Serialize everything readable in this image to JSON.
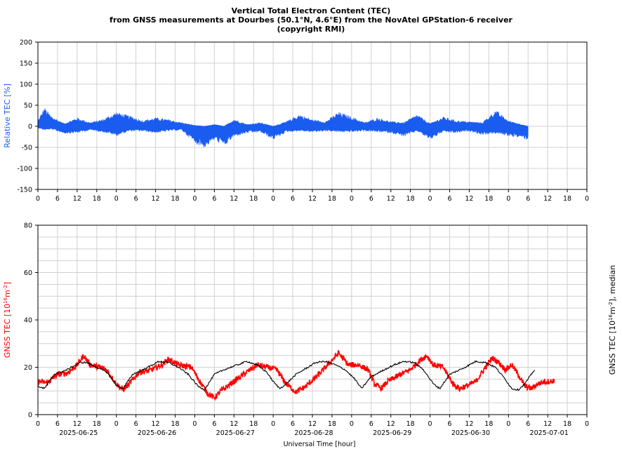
{
  "title": {
    "line1": "Vertical Total Electron Content (TEC)",
    "line2": "from GNSS measurements at Dourbes (50.1°N, 4.6°E) from the NovAtel GPStation-6 receiver",
    "line3": "(copyright RMI)"
  },
  "colors": {
    "relative": "#1a5cf0",
    "gnss": "#ff0000",
    "median": "#000000",
    "grid": "#d0d0d0"
  },
  "chart_data": [
    {
      "type": "area",
      "ylabel": "Relative TEC [%]",
      "ylim": [
        -150,
        200
      ],
      "yticks": [
        200,
        150,
        100,
        50,
        0,
        -50,
        -100,
        -150
      ],
      "xlim_hours": [
        0,
        168
      ],
      "data_end_hour": 150,
      "xtick_labels": [
        "0",
        "6",
        "12",
        "18",
        "0",
        "6",
        "12",
        "18",
        "0",
        "6",
        "12",
        "18",
        "0",
        "6",
        "12",
        "18",
        "0",
        "6",
        "12",
        "18",
        "0",
        "6",
        "12",
        "18",
        "0",
        "6",
        "12",
        "18",
        "0"
      ],
      "grid": true,
      "envelope_points": [
        {
          "hour": 0,
          "upper": 12,
          "lower": -3
        },
        {
          "hour": 2,
          "upper": 40,
          "lower": -8
        },
        {
          "hour": 4,
          "upper": 22,
          "lower": -6
        },
        {
          "hour": 8,
          "upper": 6,
          "lower": -15
        },
        {
          "hour": 12,
          "upper": 18,
          "lower": -14
        },
        {
          "hour": 16,
          "upper": 8,
          "lower": -8
        },
        {
          "hour": 20,
          "upper": 15,
          "lower": -12
        },
        {
          "hour": 24,
          "upper": 30,
          "lower": -20
        },
        {
          "hour": 28,
          "upper": 22,
          "lower": -10
        },
        {
          "hour": 32,
          "upper": 12,
          "lower": -10
        },
        {
          "hour": 36,
          "upper": 18,
          "lower": -14
        },
        {
          "hour": 40,
          "upper": 14,
          "lower": -10
        },
        {
          "hour": 44,
          "upper": 8,
          "lower": -8
        },
        {
          "hour": 48,
          "upper": 2,
          "lower": -35
        },
        {
          "hour": 51,
          "upper": 0,
          "lower": -45
        },
        {
          "hour": 54,
          "upper": 4,
          "lower": -28
        },
        {
          "hour": 57,
          "upper": 0,
          "lower": -42
        },
        {
          "hour": 60,
          "upper": 15,
          "lower": -22
        },
        {
          "hour": 64,
          "upper": 4,
          "lower": -14
        },
        {
          "hour": 68,
          "upper": 8,
          "lower": -12
        },
        {
          "hour": 72,
          "upper": 0,
          "lower": -28
        },
        {
          "hour": 76,
          "upper": 10,
          "lower": -12
        },
        {
          "hour": 80,
          "upper": 25,
          "lower": -10
        },
        {
          "hour": 84,
          "upper": 14,
          "lower": -12
        },
        {
          "hour": 88,
          "upper": 10,
          "lower": -10
        },
        {
          "hour": 92,
          "upper": 30,
          "lower": -12
        },
        {
          "hour": 96,
          "upper": 20,
          "lower": -12
        },
        {
          "hour": 100,
          "upper": 8,
          "lower": -10
        },
        {
          "hour": 104,
          "upper": 18,
          "lower": -12
        },
        {
          "hour": 108,
          "upper": 10,
          "lower": -14
        },
        {
          "hour": 112,
          "upper": 8,
          "lower": -22
        },
        {
          "hour": 116,
          "upper": 25,
          "lower": -10
        },
        {
          "hour": 120,
          "upper": 6,
          "lower": -28
        },
        {
          "hour": 124,
          "upper": 20,
          "lower": -12
        },
        {
          "hour": 128,
          "upper": 12,
          "lower": -14
        },
        {
          "hour": 132,
          "upper": 10,
          "lower": -10
        },
        {
          "hour": 136,
          "upper": 8,
          "lower": -18
        },
        {
          "hour": 140,
          "upper": 34,
          "lower": -15
        },
        {
          "hour": 144,
          "upper": 12,
          "lower": -20
        },
        {
          "hour": 148,
          "upper": 4,
          "lower": -25
        },
        {
          "hour": 150,
          "upper": 0,
          "lower": -28
        }
      ]
    },
    {
      "type": "line",
      "ylabel": "GNSS TEC [10^16 m^-2]",
      "ylabel_main": "GNSS TEC [10",
      "ylabel_exp1": "16",
      "ylabel_mid": "m",
      "ylabel_exp2": "-2",
      "ylabel_end": "]",
      "ylabel_right": "GNSS TEC [10^16 m^-2], median",
      "ylabel_right_main": "GNSS TEC [10",
      "ylabel_right_end": "], median",
      "xlabel": "Universal Time [hour]",
      "ylim": [
        0,
        80
      ],
      "yticks": [
        80,
        60,
        40,
        20,
        0
      ],
      "xlim_hours": [
        0,
        168
      ],
      "xtick_labels": [
        "0",
        "6",
        "12",
        "18",
        "0",
        "6",
        "12",
        "18",
        "0",
        "6",
        "12",
        "18",
        "0",
        "6",
        "12",
        "18",
        "0",
        "6",
        "12",
        "18",
        "0",
        "6",
        "12",
        "18",
        "0",
        "6",
        "12",
        "18",
        "0"
      ],
      "date_labels": [
        "2025-06-25",
        "2025-06-26",
        "2025-06-27",
        "2025-06-28",
        "2025-06-29",
        "2025-06-30",
        "2025-07-01"
      ],
      "grid": true,
      "series": [
        {
          "name": "GNSS TEC",
          "color": "#ff0000",
          "points": [
            [
              0,
              14
            ],
            [
              3,
              13.5
            ],
            [
              6,
              17
            ],
            [
              9,
              17.5
            ],
            [
              12,
              21
            ],
            [
              14,
              25
            ],
            [
              16,
              21
            ],
            [
              19,
              20
            ],
            [
              21,
              19
            ],
            [
              24,
              13
            ],
            [
              26,
              10.5
            ],
            [
              28,
              13
            ],
            [
              31,
              18
            ],
            [
              34,
              18.5
            ],
            [
              38,
              21
            ],
            [
              40,
              23.5
            ],
            [
              43,
              21
            ],
            [
              47,
              20
            ],
            [
              50,
              13
            ],
            [
              52,
              9
            ],
            [
              54,
              7
            ],
            [
              56,
              10
            ],
            [
              58,
              12
            ],
            [
              60,
              14
            ],
            [
              64,
              18
            ],
            [
              67,
              21
            ],
            [
              70,
              20
            ],
            [
              73,
              19
            ],
            [
              74,
              17
            ],
            [
              76,
              13
            ],
            [
              79,
              9.5
            ],
            [
              82,
              12
            ],
            [
              86,
              17
            ],
            [
              88,
              20
            ],
            [
              90,
              23
            ],
            [
              92,
              26
            ],
            [
              95,
              21
            ],
            [
              98,
              21
            ],
            [
              101,
              19
            ],
            [
              103,
              13
            ],
            [
              105,
              11
            ],
            [
              107,
              14
            ],
            [
              111,
              17
            ],
            [
              114,
              19
            ],
            [
              117,
              23
            ],
            [
              119,
              25
            ],
            [
              121,
              21
            ],
            [
              124,
              20
            ],
            [
              127,
              13
            ],
            [
              129,
              11
            ],
            [
              131,
              12
            ],
            [
              134,
              14
            ],
            [
              137,
              20
            ],
            [
              139,
              24
            ],
            [
              141,
              22
            ],
            [
              143,
              19
            ],
            [
              145,
              21
            ],
            [
              147,
              17
            ],
            [
              149,
              12
            ],
            [
              151,
              11
            ],
            [
              153,
              13
            ],
            [
              155,
              14
            ],
            [
              157,
              14
            ],
            [
              158,
              14.5
            ]
          ],
          "noise": 1.2
        },
        {
          "name": "median",
          "color": "#000000",
          "points": [
            [
              0,
              12
            ],
            [
              2,
              11
            ],
            [
              5,
              17
            ],
            [
              9,
              19
            ],
            [
              13,
              22
            ],
            [
              15,
              22
            ],
            [
              18,
              20
            ],
            [
              21,
              18
            ],
            [
              24,
              12.5
            ],
            [
              26,
              11
            ],
            [
              29,
              17
            ],
            [
              33,
              19.5
            ],
            [
              37,
              22.5
            ],
            [
              40,
              22
            ],
            [
              43,
              20
            ],
            [
              46,
              17
            ],
            [
              49,
              12
            ],
            [
              51,
              10.5
            ],
            [
              54,
              17
            ],
            [
              57,
              19
            ],
            [
              61,
              21
            ],
            [
              64,
              22.5
            ],
            [
              67,
              21
            ],
            [
              70,
              18
            ],
            [
              72,
              14
            ],
            [
              74,
              11
            ],
            [
              76,
              13
            ],
            [
              79,
              17
            ],
            [
              82,
              19.5
            ],
            [
              85,
              22
            ],
            [
              88,
              22.5
            ],
            [
              91,
              21
            ],
            [
              94,
              19
            ],
            [
              97,
              15
            ],
            [
              99,
              11
            ],
            [
              102,
              16
            ],
            [
              106,
              19
            ],
            [
              109,
              21
            ],
            [
              112,
              22.5
            ],
            [
              115,
              22
            ],
            [
              118,
              19
            ],
            [
              121,
              13
            ],
            [
              123,
              11
            ],
            [
              126,
              17
            ],
            [
              130,
              19.5
            ],
            [
              134,
              22.5
            ],
            [
              137,
              22
            ],
            [
              140,
              20
            ],
            [
              143,
              15
            ],
            [
              145,
              11
            ],
            [
              147,
              10.5
            ],
            [
              149,
              13
            ],
            [
              151,
              17
            ],
            [
              152,
              19
            ]
          ],
          "noise": 0.35
        }
      ]
    }
  ]
}
